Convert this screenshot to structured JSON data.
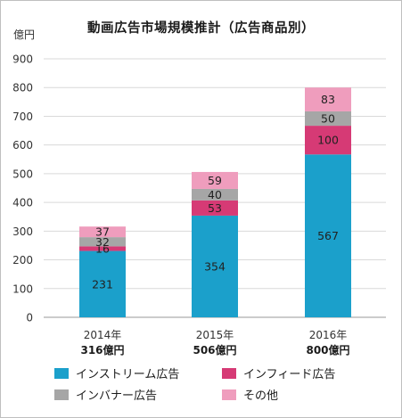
{
  "chart_data": {
    "type": "bar",
    "stacked": true,
    "title": "動画広告市場規模推計（広告商品別）",
    "ylabel": "億円",
    "ylim": [
      0,
      900
    ],
    "yticks": [
      0,
      100,
      200,
      300,
      400,
      500,
      600,
      700,
      800,
      900
    ],
    "grid": true,
    "legend_position": "bottom",
    "categories": [
      "2014年",
      "2015年",
      "2016年"
    ],
    "totals": [
      "316億円",
      "506億円",
      "800億円"
    ],
    "series": [
      {
        "name": "インストリーム広告",
        "color": "#1ba0cb",
        "values": [
          231,
          354,
          567
        ]
      },
      {
        "name": "インフィード広告",
        "color": "#d63a75",
        "values": [
          16,
          53,
          100
        ]
      },
      {
        "name": "インバナー広告",
        "color": "#a6a6a6",
        "values": [
          32,
          40,
          50
        ]
      },
      {
        "name": "その他",
        "color": "#ef9dbd",
        "values": [
          37,
          59,
          83
        ]
      }
    ]
  }
}
